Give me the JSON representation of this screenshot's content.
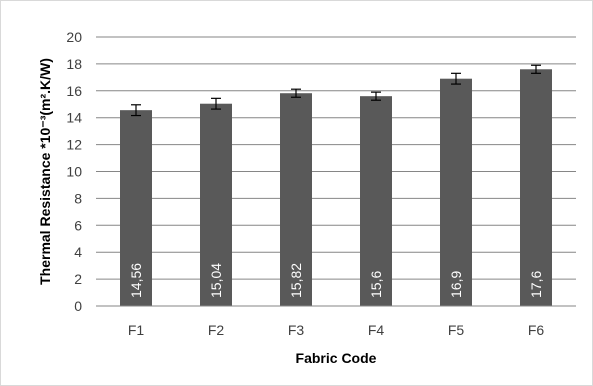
{
  "chart_data": {
    "type": "bar",
    "categories": [
      "F1",
      "F2",
      "F3",
      "F4",
      "F5",
      "F6"
    ],
    "values": [
      14.56,
      15.04,
      15.82,
      15.6,
      16.9,
      17.6
    ],
    "data_labels": [
      "14,56",
      "15,04",
      "15,82",
      "15,6",
      "16,9",
      "17,6"
    ],
    "error": [
      0.4,
      0.4,
      0.3,
      0.3,
      0.4,
      0.3
    ],
    "xlabel": "Fabric Code",
    "ylabel": "Thermal Resistance *10⁻³(m².K/W)",
    "ylim": [
      0,
      20
    ],
    "y_ticks": [
      0,
      2,
      4,
      6,
      8,
      10,
      12,
      14,
      16,
      18,
      20
    ],
    "grid": true,
    "legend": "none",
    "bar_color": "#595959"
  }
}
